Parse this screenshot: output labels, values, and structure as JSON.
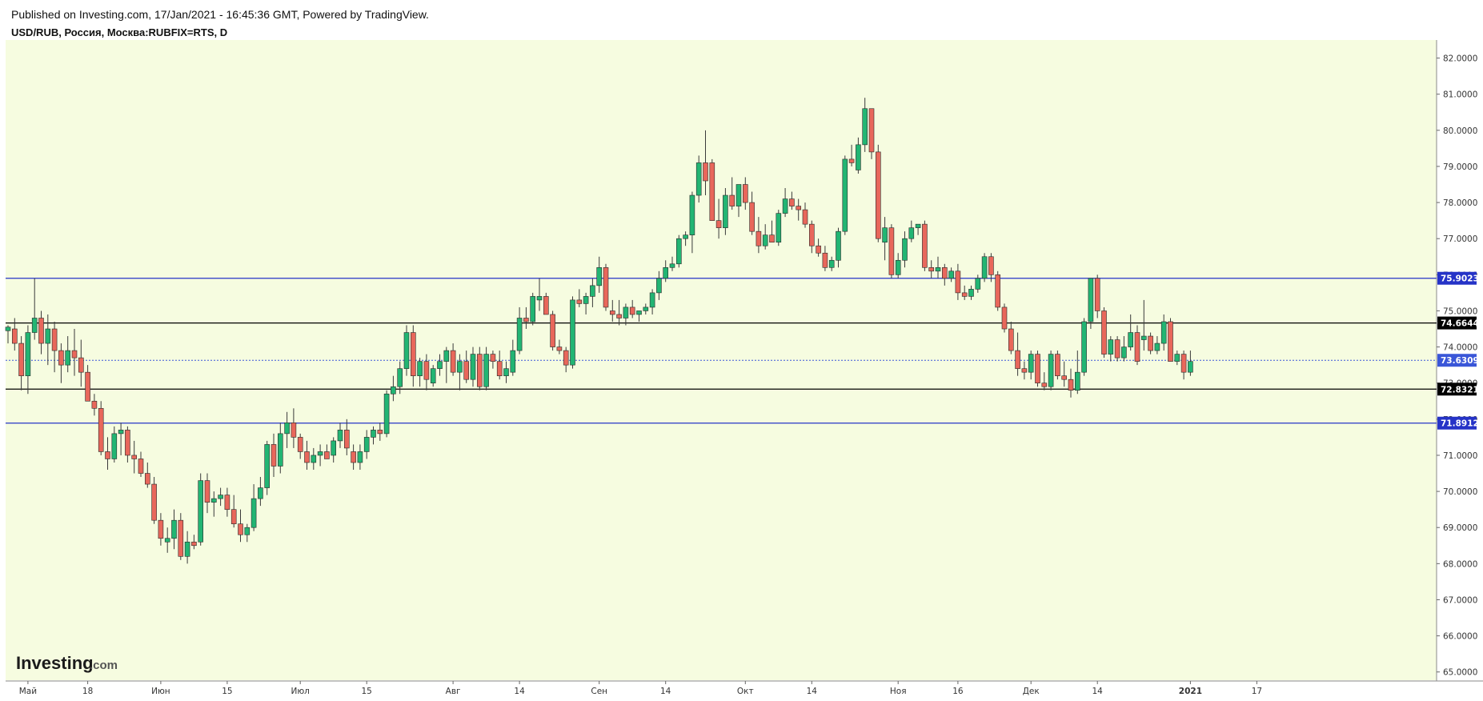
{
  "header": {
    "published": "Published on Investing.com, 17/Jan/2021 - 16:45:36 GMT, Powered by TradingView.",
    "symbol": "USD/RUB, Россия, Москва:RUBFIX=RTS, D"
  },
  "logo": {
    "main": "Investing",
    "suffix": ".com"
  },
  "colors": {
    "background": "#f6fce0",
    "up": "#22b573",
    "down": "#e8675b",
    "wick": "#3a3a3a",
    "support_resistance": "#2533c7",
    "level_black": "#000000",
    "current_price": "#3a56d8"
  },
  "chart_data": {
    "type": "candlestick",
    "title": "USD/RUB, Россия, Москва:RUBFIX=RTS, D",
    "ylim": [
      64.75,
      82.5
    ],
    "y_ticks": [
      "82.0000",
      "81.0000",
      "80.0000",
      "79.0000",
      "78.0000",
      "77.0000",
      "76.0000",
      "75.0000",
      "74.0000",
      "73.0000",
      "72.0000",
      "71.0000",
      "70.0000",
      "69.0000",
      "68.0000",
      "67.0000",
      "66.0000",
      "65.0000"
    ],
    "x_labels": [
      {
        "label": "Май",
        "i": 3,
        "bold": false
      },
      {
        "label": "18",
        "i": 12,
        "bold": false
      },
      {
        "label": "Июн",
        "i": 23,
        "bold": false
      },
      {
        "label": "15",
        "i": 33,
        "bold": false
      },
      {
        "label": "Июл",
        "i": 44,
        "bold": false
      },
      {
        "label": "15",
        "i": 54,
        "bold": false
      },
      {
        "label": "Авг",
        "i": 67,
        "bold": false
      },
      {
        "label": "14",
        "i": 77,
        "bold": false
      },
      {
        "label": "Сен",
        "i": 89,
        "bold": false
      },
      {
        "label": "14",
        "i": 99,
        "bold": false
      },
      {
        "label": "Окт",
        "i": 111,
        "bold": false
      },
      {
        "label": "14",
        "i": 121,
        "bold": false
      },
      {
        "label": "Ноя",
        "i": 134,
        "bold": false
      },
      {
        "label": "16",
        "i": 143,
        "bold": false
      },
      {
        "label": "Дек",
        "i": 154,
        "bold": false
      },
      {
        "label": "14",
        "i": 164,
        "bold": false
      },
      {
        "label": "2021",
        "i": 178,
        "bold": true
      },
      {
        "label": "17",
        "i": 188,
        "bold": false
      }
    ],
    "levels": [
      {
        "value": 75.9023,
        "label": "75.9023",
        "color": "#2533c7",
        "style": "solid"
      },
      {
        "value": 74.6644,
        "label": "74.6644",
        "color": "#000000",
        "style": "solid"
      },
      {
        "value": 73.6309,
        "label": "73.6309",
        "color": "#3a56d8",
        "style": "dotted"
      },
      {
        "value": 72.8321,
        "label": "72.8321",
        "color": "#000000",
        "style": "solid"
      },
      {
        "value": 71.8912,
        "label": "71.8912",
        "color": "#2533c7",
        "style": "solid"
      }
    ],
    "candles": [
      [
        74.45,
        74.6,
        74.1,
        74.55
      ],
      [
        74.5,
        74.8,
        73.9,
        74.1
      ],
      [
        74.1,
        74.3,
        72.8,
        73.2
      ],
      [
        73.2,
        74.6,
        72.7,
        74.4
      ],
      [
        74.4,
        75.9,
        74.2,
        74.8
      ],
      [
        74.8,
        75.0,
        73.8,
        74.1
      ],
      [
        74.1,
        74.9,
        73.5,
        74.5
      ],
      [
        74.5,
        74.7,
        73.3,
        73.9
      ],
      [
        73.9,
        74.1,
        73.0,
        73.5
      ],
      [
        73.5,
        74.3,
        73.3,
        73.9
      ],
      [
        73.9,
        74.5,
        73.2,
        73.7
      ],
      [
        73.7,
        74.2,
        72.9,
        73.3
      ],
      [
        73.3,
        73.5,
        72.6,
        72.5
      ],
      [
        72.5,
        72.7,
        72.1,
        72.3
      ],
      [
        72.3,
        72.5,
        71.0,
        71.1
      ],
      [
        71.1,
        71.5,
        70.6,
        70.9
      ],
      [
        70.9,
        71.8,
        70.8,
        71.6
      ],
      [
        71.6,
        71.9,
        71.0,
        71.7
      ],
      [
        71.7,
        71.8,
        70.8,
        71.0
      ],
      [
        71.0,
        71.4,
        70.5,
        70.9
      ],
      [
        70.9,
        71.1,
        70.4,
        70.5
      ],
      [
        70.5,
        70.8,
        70.1,
        70.2
      ],
      [
        70.2,
        70.4,
        69.1,
        69.2
      ],
      [
        69.2,
        69.4,
        68.5,
        68.7
      ],
      [
        68.6,
        69.0,
        68.3,
        68.7
      ],
      [
        68.7,
        69.5,
        68.4,
        69.2
      ],
      [
        69.2,
        69.4,
        68.1,
        68.2
      ],
      [
        68.2,
        68.9,
        68.0,
        68.6
      ],
      [
        68.6,
        68.8,
        68.4,
        68.5
      ],
      [
        68.6,
        70.5,
        68.5,
        70.3
      ],
      [
        70.3,
        70.5,
        69.4,
        69.7
      ],
      [
        69.7,
        70.0,
        69.3,
        69.8
      ],
      [
        69.8,
        70.1,
        69.6,
        69.9
      ],
      [
        69.9,
        70.1,
        69.3,
        69.5
      ],
      [
        69.5,
        69.9,
        69.0,
        69.1
      ],
      [
        69.1,
        69.5,
        68.6,
        68.8
      ],
      [
        68.8,
        69.1,
        68.6,
        69.0
      ],
      [
        69.0,
        70.2,
        68.9,
        69.8
      ],
      [
        69.8,
        70.4,
        69.6,
        70.1
      ],
      [
        70.1,
        71.4,
        69.9,
        71.3
      ],
      [
        71.3,
        71.6,
        70.4,
        70.7
      ],
      [
        70.7,
        71.9,
        70.5,
        71.6
      ],
      [
        71.6,
        72.2,
        71.2,
        71.9
      ],
      [
        71.9,
        72.3,
        71.2,
        71.5
      ],
      [
        71.5,
        71.6,
        70.9,
        71.1
      ],
      [
        71.1,
        71.4,
        70.6,
        70.8
      ],
      [
        70.8,
        71.2,
        70.6,
        71.0
      ],
      [
        71.0,
        71.3,
        70.7,
        71.1
      ],
      [
        71.1,
        71.3,
        70.9,
        70.9
      ],
      [
        71.0,
        71.5,
        70.8,
        71.4
      ],
      [
        71.4,
        71.9,
        71.2,
        71.7
      ],
      [
        71.7,
        72.0,
        71.0,
        71.2
      ],
      [
        71.1,
        71.3,
        70.6,
        70.8
      ],
      [
        70.8,
        71.3,
        70.6,
        71.1
      ],
      [
        71.1,
        71.7,
        70.9,
        71.5
      ],
      [
        71.5,
        71.8,
        71.3,
        71.7
      ],
      [
        71.7,
        71.9,
        71.4,
        71.6
      ],
      [
        71.6,
        72.8,
        71.5,
        72.7
      ],
      [
        72.7,
        73.2,
        72.5,
        72.9
      ],
      [
        72.9,
        73.6,
        72.7,
        73.4
      ],
      [
        73.4,
        74.6,
        73.2,
        74.4
      ],
      [
        74.4,
        74.6,
        72.9,
        73.2
      ],
      [
        73.2,
        73.7,
        72.9,
        73.6
      ],
      [
        73.6,
        73.8,
        72.8,
        73.1
      ],
      [
        73.0,
        73.5,
        72.9,
        73.4
      ],
      [
        73.4,
        73.8,
        73.2,
        73.6
      ],
      [
        73.6,
        74.0,
        73.0,
        73.9
      ],
      [
        73.9,
        74.1,
        73.2,
        73.3
      ],
      [
        73.3,
        73.8,
        72.8,
        73.6
      ],
      [
        73.6,
        73.9,
        73.0,
        73.1
      ],
      [
        73.1,
        74.0,
        72.9,
        73.8
      ],
      [
        73.8,
        74.0,
        72.8,
        72.9
      ],
      [
        72.9,
        74.0,
        72.8,
        73.8
      ],
      [
        73.8,
        73.9,
        73.4,
        73.6
      ],
      [
        73.6,
        73.9,
        73.1,
        73.2
      ],
      [
        73.2,
        73.6,
        73.0,
        73.4
      ],
      [
        73.3,
        74.2,
        73.2,
        73.9
      ],
      [
        73.9,
        75.1,
        73.8,
        74.8
      ],
      [
        74.8,
        75.1,
        74.5,
        74.7
      ],
      [
        74.7,
        75.5,
        74.6,
        75.4
      ],
      [
        75.3,
        75.9,
        75.0,
        75.4
      ],
      [
        75.4,
        75.5,
        74.9,
        74.9
      ],
      [
        74.9,
        75.0,
        73.9,
        74.0
      ],
      [
        74.0,
        74.2,
        73.8,
        73.9
      ],
      [
        73.9,
        74.0,
        73.3,
        73.5
      ],
      [
        73.5,
        75.4,
        73.4,
        75.3
      ],
      [
        75.3,
        75.6,
        75.1,
        75.2
      ],
      [
        75.2,
        75.5,
        74.9,
        75.4
      ],
      [
        75.4,
        75.9,
        75.1,
        75.7
      ],
      [
        75.7,
        76.5,
        75.5,
        76.2
      ],
      [
        76.2,
        76.3,
        75.0,
        75.1
      ],
      [
        75.0,
        75.3,
        74.7,
        74.9
      ],
      [
        74.9,
        75.3,
        74.6,
        74.8
      ],
      [
        74.8,
        75.2,
        74.6,
        75.1
      ],
      [
        75.1,
        75.3,
        74.8,
        74.9
      ],
      [
        74.9,
        75.0,
        74.7,
        75.0
      ],
      [
        75.0,
        75.2,
        74.9,
        75.1
      ],
      [
        75.1,
        75.6,
        74.9,
        75.5
      ],
      [
        75.5,
        76.1,
        75.3,
        75.9
      ],
      [
        75.9,
        76.4,
        75.8,
        76.2
      ],
      [
        76.2,
        76.5,
        76.1,
        76.3
      ],
      [
        76.3,
        77.1,
        76.2,
        77.0
      ],
      [
        77.0,
        77.2,
        76.8,
        77.1
      ],
      [
        77.1,
        78.3,
        76.6,
        78.2
      ],
      [
        78.2,
        79.3,
        78.0,
        79.1
      ],
      [
        79.1,
        80.0,
        78.2,
        78.6
      ],
      [
        79.1,
        79.2,
        77.5,
        77.5
      ],
      [
        77.5,
        78.1,
        77.0,
        77.3
      ],
      [
        77.3,
        78.4,
        77.1,
        78.2
      ],
      [
        78.2,
        78.7,
        77.8,
        77.9
      ],
      [
        77.9,
        78.5,
        77.6,
        78.5
      ],
      [
        78.5,
        78.7,
        77.8,
        78.0
      ],
      [
        78.0,
        78.3,
        77.1,
        77.2
      ],
      [
        77.2,
        77.6,
        76.6,
        76.8
      ],
      [
        76.8,
        77.4,
        76.7,
        77.1
      ],
      [
        77.1,
        77.5,
        76.9,
        76.9
      ],
      [
        76.9,
        77.8,
        76.8,
        77.7
      ],
      [
        77.7,
        78.4,
        77.6,
        78.1
      ],
      [
        78.1,
        78.3,
        77.8,
        77.9
      ],
      [
        77.9,
        78.1,
        77.5,
        77.8
      ],
      [
        77.8,
        78.0,
        77.3,
        77.4
      ],
      [
        77.4,
        77.5,
        76.6,
        76.8
      ],
      [
        76.8,
        77.0,
        76.5,
        76.6
      ],
      [
        76.6,
        76.8,
        76.1,
        76.2
      ],
      [
        76.2,
        76.5,
        76.1,
        76.4
      ],
      [
        76.4,
        77.3,
        76.2,
        77.2
      ],
      [
        77.2,
        79.3,
        77.1,
        79.2
      ],
      [
        79.2,
        79.6,
        79.0,
        79.1
      ],
      [
        78.9,
        79.8,
        78.8,
        79.6
      ],
      [
        79.6,
        80.9,
        79.4,
        80.6
      ],
      [
        80.6,
        80.6,
        79.2,
        79.4
      ],
      [
        79.4,
        79.6,
        76.9,
        77.0
      ],
      [
        76.9,
        77.6,
        76.4,
        77.3
      ],
      [
        77.3,
        77.4,
        75.9,
        76.0
      ],
      [
        76.0,
        76.6,
        75.9,
        76.4
      ],
      [
        76.4,
        77.2,
        76.2,
        77.0
      ],
      [
        77.0,
        77.5,
        76.9,
        77.3
      ],
      [
        77.3,
        77.4,
        77.1,
        77.4
      ],
      [
        77.4,
        77.5,
        76.1,
        76.2
      ],
      [
        76.2,
        76.4,
        75.9,
        76.1
      ],
      [
        76.1,
        76.5,
        75.9,
        76.2
      ],
      [
        76.2,
        76.3,
        75.7,
        75.9
      ],
      [
        75.9,
        76.2,
        75.8,
        76.1
      ],
      [
        76.1,
        76.3,
        75.3,
        75.5
      ],
      [
        75.5,
        75.7,
        75.3,
        75.4
      ],
      [
        75.4,
        75.7,
        75.3,
        75.6
      ],
      [
        75.6,
        76.0,
        75.5,
        75.9
      ],
      [
        75.9,
        76.6,
        75.8,
        76.5
      ],
      [
        76.5,
        76.6,
        75.8,
        76.0
      ],
      [
        76.0,
        76.1,
        75.0,
        75.1
      ],
      [
        75.1,
        75.2,
        74.4,
        74.5
      ],
      [
        74.5,
        74.7,
        73.8,
        73.9
      ],
      [
        73.9,
        74.4,
        73.2,
        73.4
      ],
      [
        73.4,
        73.6,
        73.1,
        73.3
      ],
      [
        73.3,
        73.9,
        73.1,
        73.8
      ],
      [
        73.8,
        73.9,
        72.9,
        73.0
      ],
      [
        73.0,
        73.3,
        72.8,
        72.9
      ],
      [
        72.9,
        73.9,
        72.8,
        73.8
      ],
      [
        73.8,
        73.9,
        73.1,
        73.2
      ],
      [
        73.2,
        73.6,
        72.9,
        73.1
      ],
      [
        73.1,
        73.4,
        72.6,
        72.8
      ],
      [
        72.8,
        73.9,
        72.7,
        73.3
      ],
      [
        73.3,
        74.8,
        73.2,
        74.7
      ],
      [
        74.7,
        75.9,
        74.5,
        75.9
      ],
      [
        75.9,
        76.0,
        74.8,
        75.0
      ],
      [
        75.0,
        75.1,
        73.7,
        73.8
      ],
      [
        73.8,
        74.3,
        73.6,
        74.2
      ],
      [
        74.2,
        74.3,
        73.6,
        73.7
      ],
      [
        73.7,
        74.3,
        73.6,
        74.0
      ],
      [
        74.0,
        74.9,
        73.9,
        74.4
      ],
      [
        74.4,
        74.6,
        73.5,
        73.6
      ],
      [
        74.2,
        75.3,
        73.9,
        74.3
      ],
      [
        74.3,
        74.4,
        73.8,
        73.9
      ],
      [
        73.9,
        74.3,
        73.8,
        74.1
      ],
      [
        74.1,
        74.9,
        73.9,
        74.7
      ],
      [
        74.7,
        74.8,
        73.6,
        73.6
      ],
      [
        73.6,
        73.9,
        73.5,
        73.8
      ],
      [
        73.8,
        73.9,
        73.1,
        73.3
      ],
      [
        73.3,
        73.9,
        73.2,
        73.6
      ]
    ],
    "grid": false,
    "legend": "none"
  }
}
